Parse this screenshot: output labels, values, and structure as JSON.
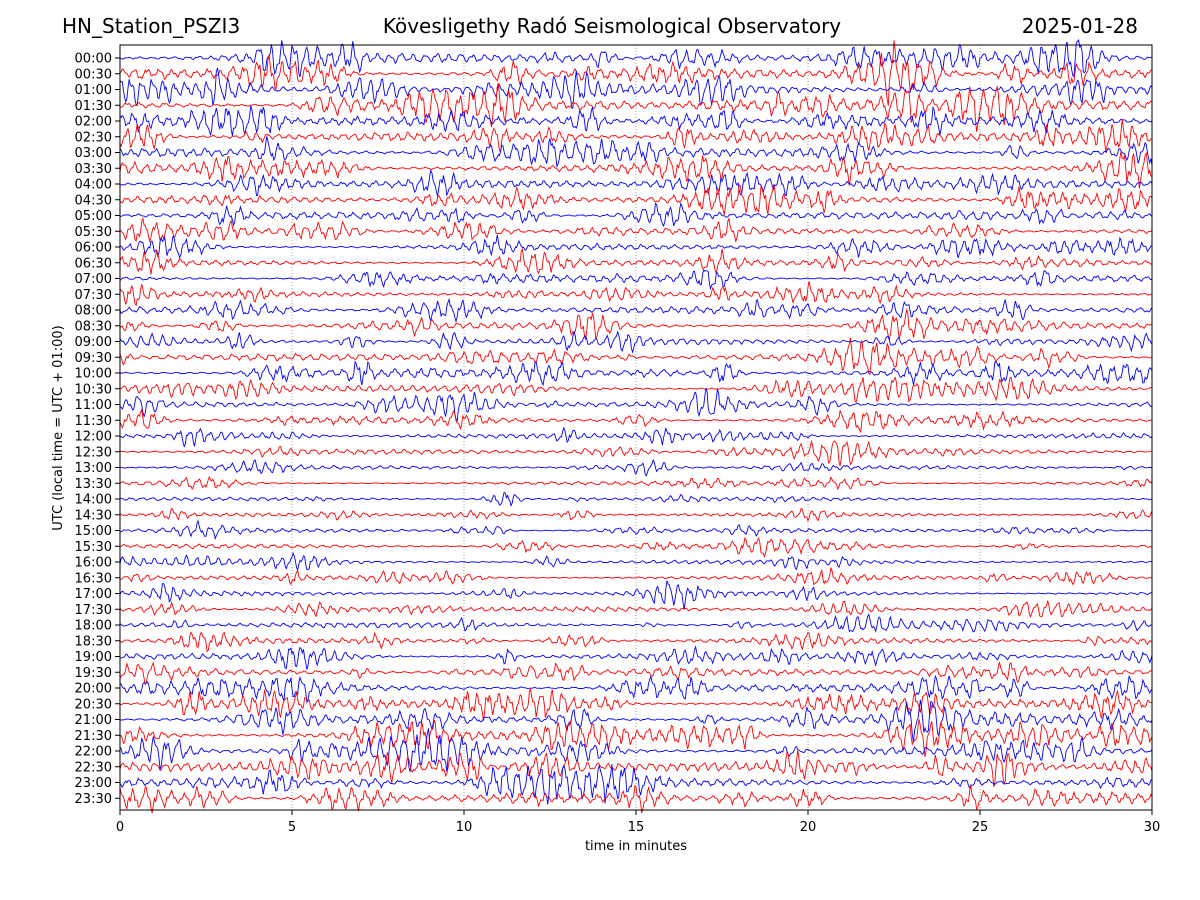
{
  "header": {
    "station": "HN_Station_PSZI3",
    "observatory": "Kövesligethy Radó Seismological Observatory",
    "date": "2025-01-28"
  },
  "chart_data": {
    "type": "line",
    "title": "Kövesligethy Radó Seismological Observatory",
    "xlabel": "time in minutes",
    "ylabel": "UTC (local time = UTC + 01:00)",
    "xlim": [
      0,
      30
    ],
    "xticks": [
      0,
      5,
      10,
      15,
      20,
      25,
      30
    ],
    "grid": "vertical dotted at x ticks",
    "trace_colors": [
      "#0000ff",
      "#ff0000"
    ],
    "rows": [
      "00:00",
      "00:30",
      "01:00",
      "01:30",
      "02:00",
      "02:30",
      "03:00",
      "03:30",
      "04:00",
      "04:30",
      "05:00",
      "05:30",
      "06:00",
      "06:30",
      "07:00",
      "07:30",
      "08:00",
      "08:30",
      "09:00",
      "09:30",
      "10:00",
      "10:30",
      "11:00",
      "11:30",
      "12:00",
      "12:30",
      "13:00",
      "13:30",
      "14:00",
      "14:30",
      "15:00",
      "15:30",
      "16:00",
      "16:30",
      "17:00",
      "17:30",
      "18:00",
      "18:30",
      "19:00",
      "19:30",
      "20:00",
      "20:30",
      "21:00",
      "21:30",
      "22:00",
      "22:30",
      "23:00",
      "23:30"
    ],
    "activity_level": [
      1.0,
      1.0,
      1.0,
      0.95,
      0.9,
      0.85,
      0.8,
      0.75,
      0.7,
      0.7,
      0.6,
      0.55,
      0.5,
      0.5,
      0.5,
      0.45,
      0.55,
      0.55,
      0.6,
      0.65,
      0.65,
      0.6,
      0.45,
      0.45,
      0.4,
      0.35,
      0.2,
      0.2,
      0.2,
      0.2,
      0.25,
      0.3,
      0.3,
      0.3,
      0.35,
      0.35,
      0.45,
      0.45,
      0.5,
      0.55,
      0.7,
      0.75,
      0.8,
      0.85,
      0.9,
      0.85,
      0.8,
      0.75
    ]
  }
}
